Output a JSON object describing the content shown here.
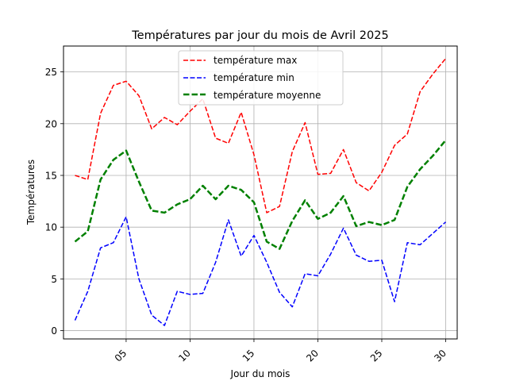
{
  "chart_data": {
    "type": "line",
    "title": "Températures par jour du mois de Avril 2025",
    "xlabel": "Jour du mois",
    "ylabel": "Températures",
    "x": [
      1,
      2,
      3,
      4,
      5,
      6,
      7,
      8,
      9,
      10,
      11,
      12,
      13,
      14,
      15,
      16,
      17,
      18,
      19,
      20,
      21,
      22,
      23,
      24,
      25,
      26,
      27,
      28,
      29,
      30
    ],
    "x_ticks": [
      5,
      10,
      15,
      20,
      25,
      30
    ],
    "x_tick_labels": [
      "05",
      "10",
      "15",
      "20",
      "25",
      "30"
    ],
    "y_ticks": [
      0,
      5,
      10,
      15,
      20,
      25
    ],
    "xlim": [
      0.1,
      30.9
    ],
    "ylim": [
      -0.8,
      27.5
    ],
    "grid": true,
    "legend_position": "top-center",
    "series": [
      {
        "name": "température max",
        "color": "#ff0000",
        "style": "dashed",
        "values": [
          15.0,
          14.6,
          21.0,
          23.7,
          24.1,
          22.7,
          19.5,
          20.6,
          19.9,
          21.2,
          22.4,
          18.6,
          18.1,
          21.1,
          17.0,
          11.4,
          12.0,
          17.3,
          20.1,
          15.1,
          15.2,
          17.5,
          14.3,
          13.5,
          15.3,
          17.9,
          19.0,
          23.1,
          24.8,
          26.3
        ]
      },
      {
        "name": "température min",
        "color": "#0000ff",
        "style": "dashed",
        "values": [
          1.0,
          3.8,
          8.0,
          8.5,
          11.0,
          5.0,
          1.5,
          0.5,
          3.8,
          3.5,
          3.6,
          6.6,
          10.7,
          7.2,
          9.2,
          6.6,
          3.7,
          2.3,
          5.5,
          5.3,
          7.4,
          9.9,
          7.3,
          6.7,
          6.8,
          2.8,
          8.5,
          8.3,
          9.4,
          10.5
        ]
      },
      {
        "name": "température moyenne",
        "color": "#008000",
        "style": "dashed-thick",
        "values": [
          8.6,
          9.6,
          14.6,
          16.5,
          17.4,
          14.4,
          11.6,
          11.4,
          12.2,
          12.7,
          14.0,
          12.7,
          14.0,
          13.6,
          12.4,
          8.6,
          7.9,
          10.6,
          12.6,
          10.8,
          11.4,
          13.0,
          10.1,
          10.5,
          10.2,
          10.7,
          13.9,
          15.6,
          16.9,
          18.4
        ]
      }
    ]
  }
}
